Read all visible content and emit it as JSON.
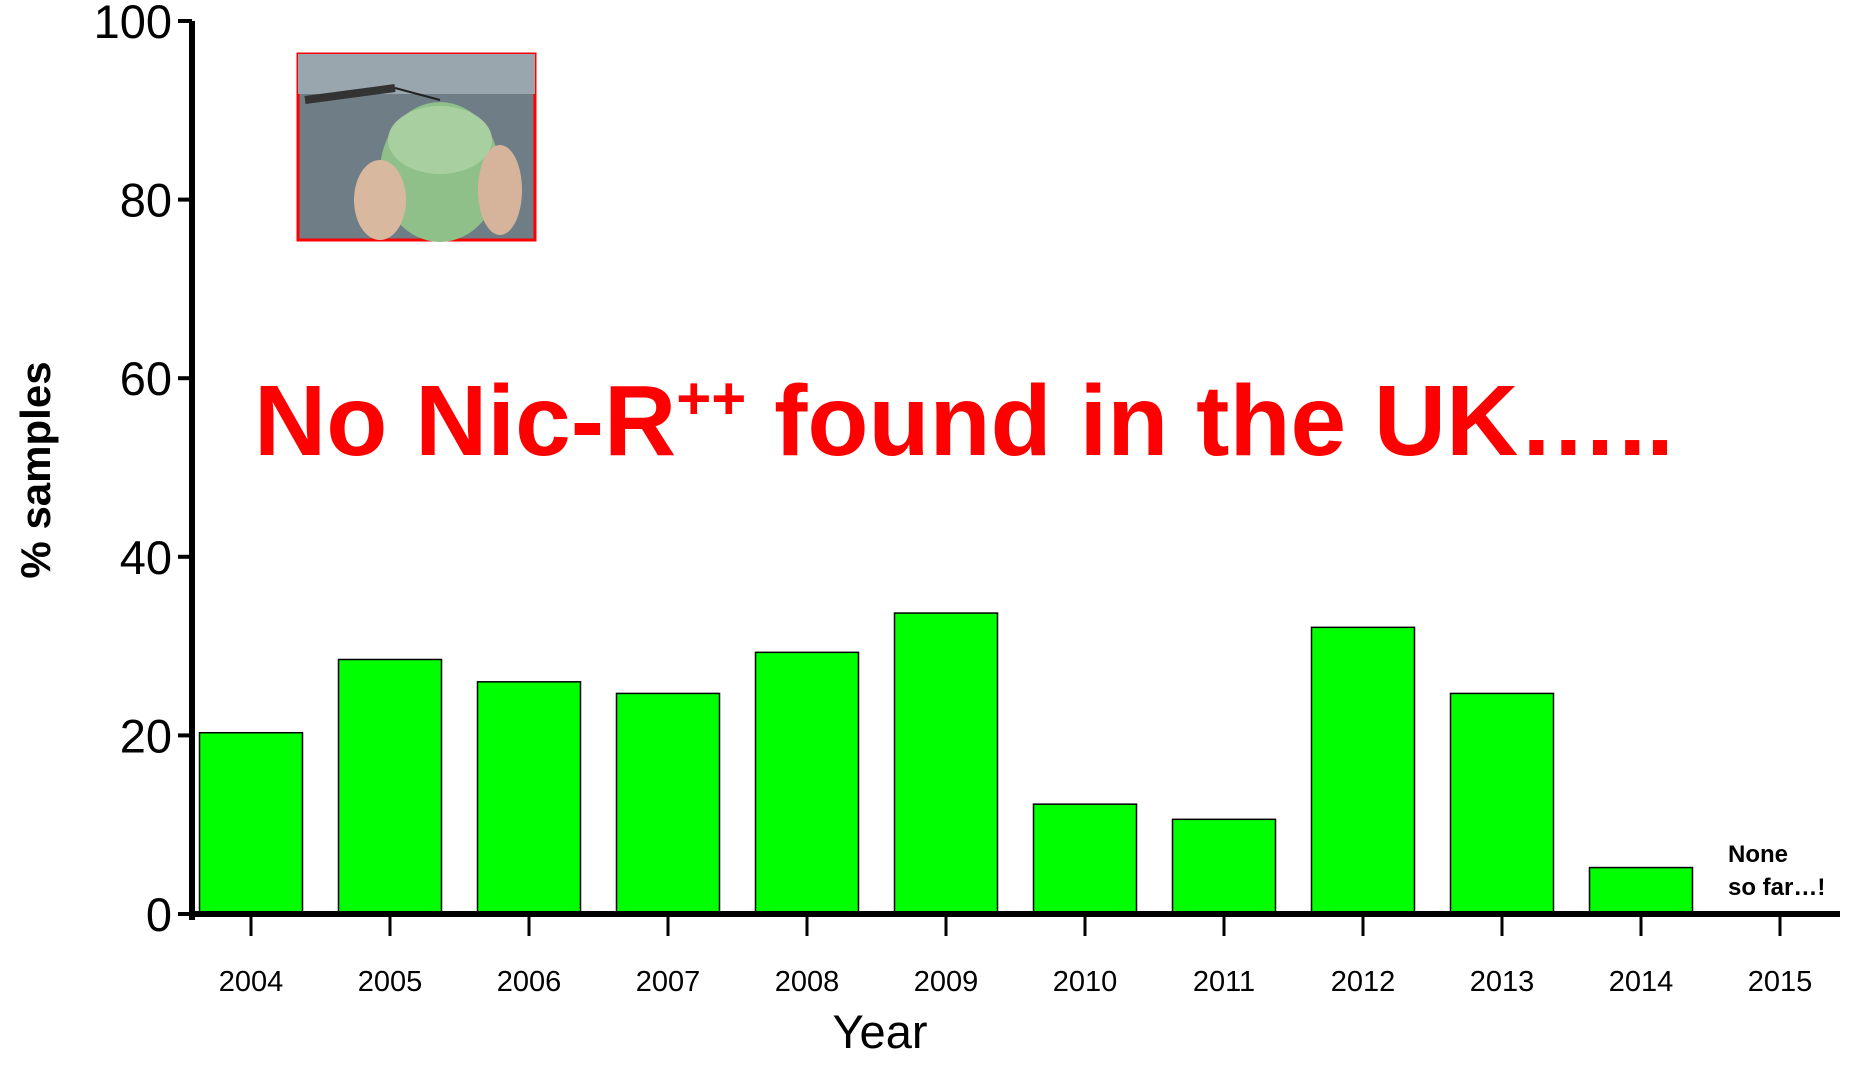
{
  "chart_data": {
    "type": "bar",
    "title": {
      "text": "No Nic-R",
      "superscript": "++",
      "rest": " found in the UK….."
    },
    "x_label": "Year",
    "y_label": "% samples",
    "categories": [
      "2004",
      "2005",
      "2006",
      "2007",
      "2008",
      "2009",
      "2010",
      "2011",
      "2012",
      "2013",
      "2014",
      "2015"
    ],
    "values": [
      20.3,
      28.5,
      26.0,
      24.7,
      29.3,
      33.7,
      12.3,
      10.6,
      32.1,
      24.7,
      5.2,
      null
    ],
    "color": "#00ff00",
    "ylim": [
      0,
      100
    ],
    "yticks": [
      0,
      20,
      40,
      60,
      80,
      100
    ],
    "annotation": [
      "None",
      "so far…!"
    ],
    "title_color": "#ff0000"
  }
}
